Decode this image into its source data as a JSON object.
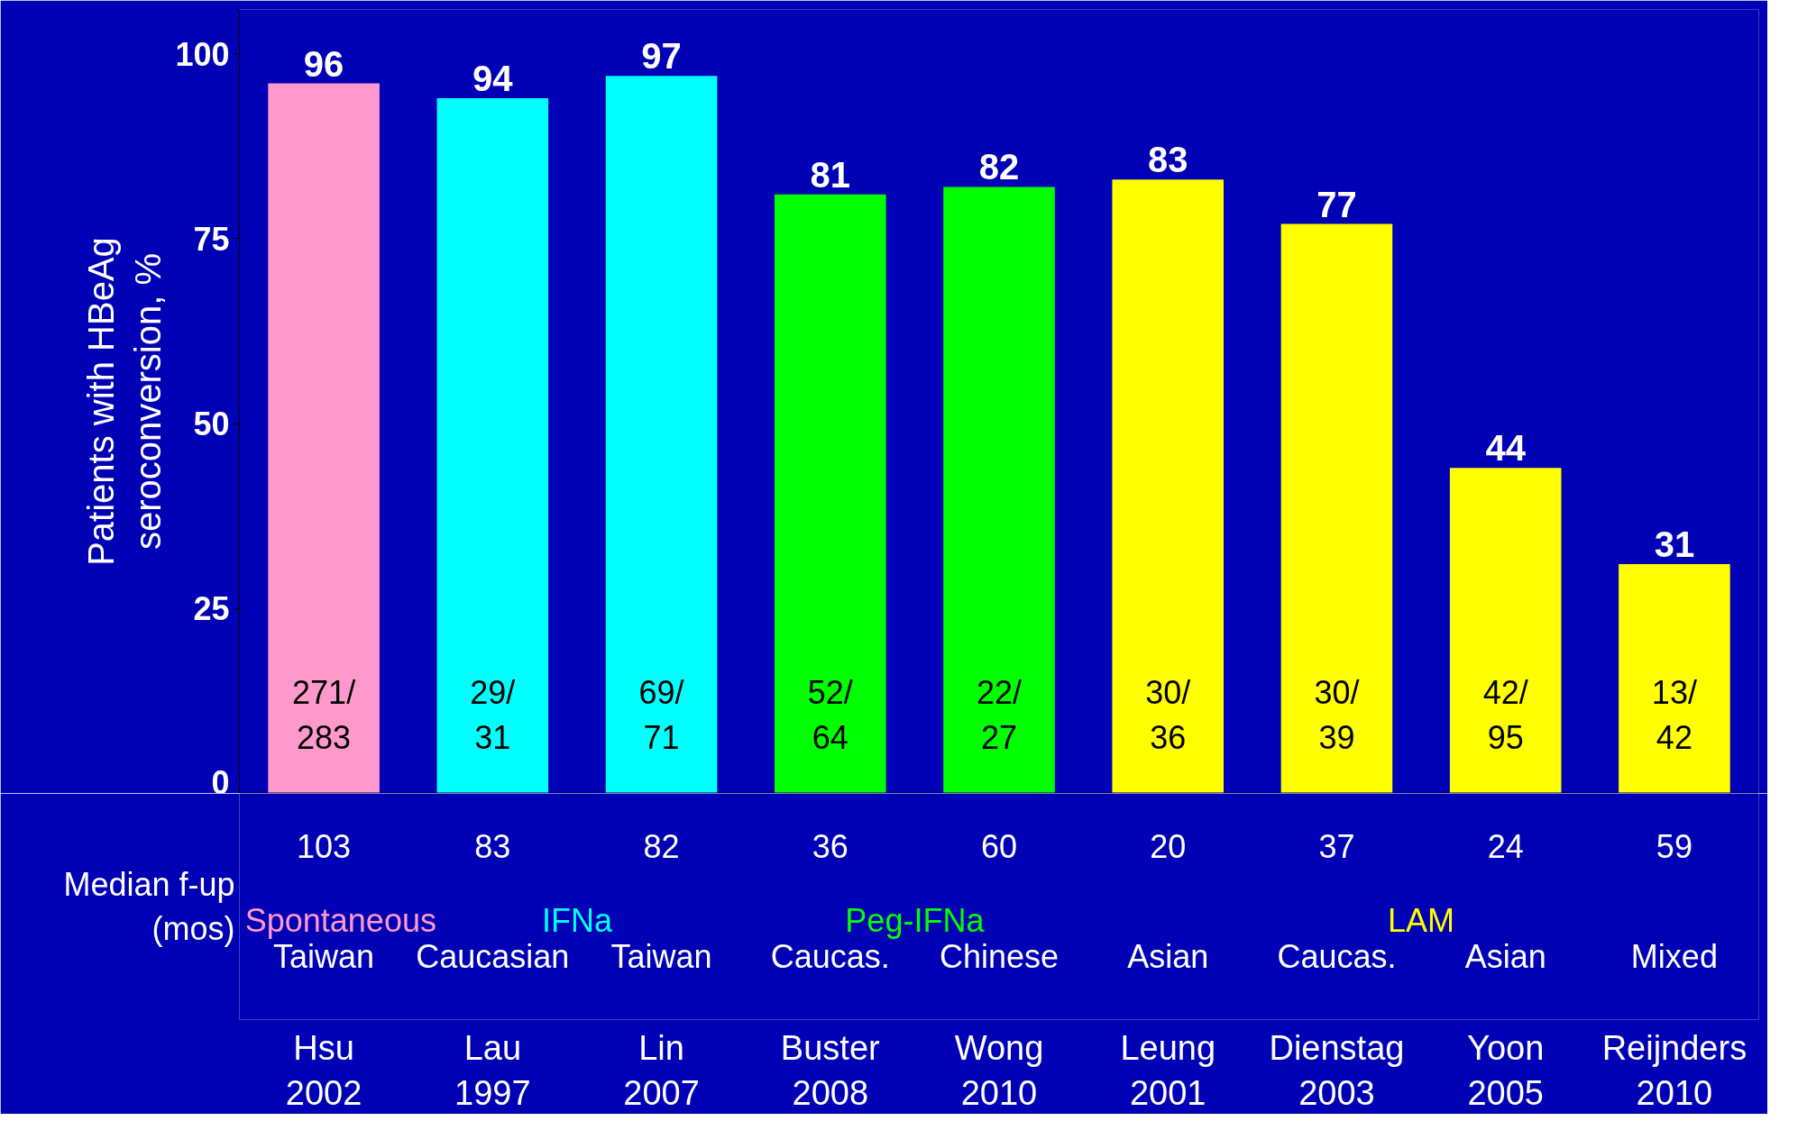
{
  "chart_data": {
    "type": "bar",
    "ylabel": "Patients with HBeAg\nseroconversion, %",
    "categories": [
      "Hsu\n2002",
      "Lau\n1997",
      "Lin\n2007",
      "Buster\n2008",
      "Wong\n2010",
      "Leung\n2001",
      "Dienstag\n2003",
      "Yoon\n2005",
      "Reijnders\n2010"
    ],
    "values": [
      96,
      94,
      97,
      81,
      82,
      83,
      77,
      44,
      31
    ],
    "colors": [
      "#ff99cc",
      "#00ffff",
      "#00ffff",
      "#00ff00",
      "#00ff00",
      "#ffff00",
      "#ffff00",
      "#ffff00",
      "#ffff00"
    ],
    "ylim": [
      0,
      106
    ],
    "yticks": [
      0,
      25,
      50,
      75,
      100
    ],
    "grid": false,
    "data_labels": true,
    "annotations": [
      "Median f-up\n(mos)",
      "Spontaneous",
      "IFNa",
      "Peg-IFNa",
      "LAM",
      "271/\n283",
      "29/\n31",
      "69/\n71",
      "52/\n64",
      "22/\n27",
      "30/\n36",
      "30/\n39",
      "42/\n95",
      "13/\n42",
      "103",
      "83",
      "82",
      "36",
      "60",
      "20",
      "37",
      "24",
      "59",
      "Taiwan",
      "Caucasian",
      "Taiwan",
      "Caucas.",
      "Chinese",
      "Asian",
      "Caucas.",
      "Asian",
      "Mixed"
    ]
  }
}
